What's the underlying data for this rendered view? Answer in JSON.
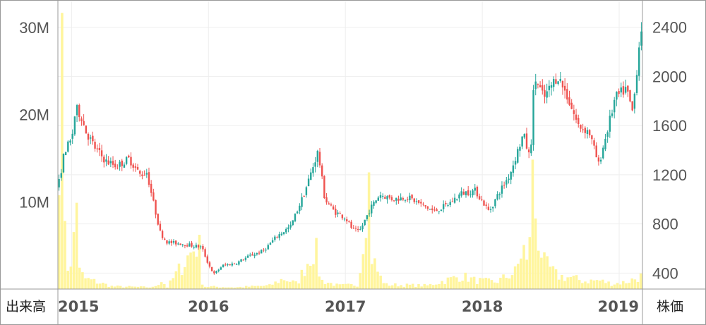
{
  "chart_data": {
    "type": "candlestick+bar",
    "left_axis": {
      "label": "出来高",
      "ticks": [
        {
          "v": 10000000,
          "t": "10M"
        },
        {
          "v": 20000000,
          "t": "20M"
        },
        {
          "v": 30000000,
          "t": "30M"
        }
      ],
      "ylim": [
        0,
        33000000
      ]
    },
    "right_axis": {
      "label": "株価",
      "ticks": [
        {
          "v": 400,
          "t": "400"
        },
        {
          "v": 800,
          "t": "800"
        },
        {
          "v": 1200,
          "t": "1200"
        },
        {
          "v": 1600,
          "t": "1600"
        },
        {
          "v": 2000,
          "t": "2000"
        },
        {
          "v": 2400,
          "t": "2400"
        }
      ],
      "ylim": [
        270,
        2610
      ]
    },
    "x_axis": {
      "ticks": [
        "2015",
        "2016",
        "2017",
        "2018",
        "2019"
      ],
      "range": [
        2014.9,
        2019.17
      ]
    },
    "colors": {
      "up": "#26a69a",
      "down": "#ef5350",
      "volume": "#fff59d",
      "grid": "#eeeeee",
      "frame": "#999999"
    },
    "price_path": [
      [
        2014.9,
        1090
      ],
      [
        2014.95,
        1400
      ],
      [
        2015.0,
        1480
      ],
      [
        2015.03,
        1740
      ],
      [
        2015.07,
        1680
      ],
      [
        2015.1,
        1560
      ],
      [
        2015.17,
        1420
      ],
      [
        2015.25,
        1310
      ],
      [
        2015.33,
        1270
      ],
      [
        2015.42,
        1330
      ],
      [
        2015.5,
        1200
      ],
      [
        2015.55,
        1220
      ],
      [
        2015.6,
        960
      ],
      [
        2015.65,
        720
      ],
      [
        2015.7,
        650
      ],
      [
        2015.8,
        640
      ],
      [
        2015.9,
        620
      ],
      [
        2015.95,
        610
      ],
      [
        2016.0,
        470
      ],
      [
        2016.04,
        390
      ],
      [
        2016.1,
        460
      ],
      [
        2016.2,
        480
      ],
      [
        2016.3,
        540
      ],
      [
        2016.4,
        580
      ],
      [
        2016.5,
        700
      ],
      [
        2016.6,
        780
      ],
      [
        2016.7,
        1050
      ],
      [
        2016.75,
        1220
      ],
      [
        2016.8,
        1390
      ],
      [
        2016.85,
        1000
      ],
      [
        2016.92,
        900
      ],
      [
        2017.0,
        850
      ],
      [
        2017.05,
        760
      ],
      [
        2017.1,
        730
      ],
      [
        2017.18,
        920
      ],
      [
        2017.25,
        1040
      ],
      [
        2017.35,
        1000
      ],
      [
        2017.45,
        1020
      ],
      [
        2017.55,
        960
      ],
      [
        2017.65,
        900
      ],
      [
        2017.75,
        960
      ],
      [
        2017.85,
        1050
      ],
      [
        2017.95,
        1070
      ],
      [
        2018.05,
        900
      ],
      [
        2018.12,
        1050
      ],
      [
        2018.2,
        1200
      ],
      [
        2018.3,
        1530
      ],
      [
        2018.35,
        1320
      ],
      [
        2018.38,
        2000
      ],
      [
        2018.45,
        1820
      ],
      [
        2018.55,
        2010
      ],
      [
        2018.62,
        1840
      ],
      [
        2018.7,
        1600
      ],
      [
        2018.78,
        1550
      ],
      [
        2018.85,
        1280
      ],
      [
        2018.92,
        1590
      ],
      [
        2018.97,
        1820
      ],
      [
        2019.05,
        1900
      ],
      [
        2019.1,
        1700
      ],
      [
        2019.14,
        2200
      ],
      [
        2019.17,
        2480
      ]
    ],
    "volume_path": [
      [
        2014.9,
        6500000
      ],
      [
        2014.92,
        31000000
      ],
      [
        2014.95,
        11000000
      ],
      [
        2014.97,
        3000000
      ],
      [
        2015.0,
        2000000
      ],
      [
        2015.04,
        12000000
      ],
      [
        2015.06,
        2000000
      ],
      [
        2015.1,
        1200000
      ],
      [
        2015.3,
        300000
      ],
      [
        2015.6,
        200000
      ],
      [
        2015.66,
        1000000
      ],
      [
        2015.7,
        200000
      ],
      [
        2015.93,
        5500000
      ],
      [
        2015.96,
        300000
      ],
      [
        2016.2,
        200000
      ],
      [
        2016.45,
        400000
      ],
      [
        2016.55,
        1200000
      ],
      [
        2016.65,
        600000
      ],
      [
        2016.78,
        5000000
      ],
      [
        2016.82,
        1000000
      ],
      [
        2016.95,
        400000
      ],
      [
        2017.1,
        500000
      ],
      [
        2017.17,
        14000000
      ],
      [
        2017.19,
        4000000
      ],
      [
        2017.25,
        1500000
      ],
      [
        2017.3,
        500000
      ],
      [
        2017.6,
        400000
      ],
      [
        2017.85,
        1500000
      ],
      [
        2017.95,
        1000000
      ],
      [
        2018.1,
        800000
      ],
      [
        2018.25,
        2000000
      ],
      [
        2018.3,
        5000000
      ],
      [
        2018.33,
        2500000
      ],
      [
        2018.37,
        12500000
      ],
      [
        2018.4,
        7000000
      ],
      [
        2018.45,
        3000000
      ],
      [
        2018.55,
        1500000
      ],
      [
        2018.65,
        1300000
      ],
      [
        2018.75,
        900000
      ],
      [
        2018.85,
        1000000
      ],
      [
        2018.95,
        600000
      ],
      [
        2019.05,
        800000
      ],
      [
        2019.12,
        1200000
      ],
      [
        2019.17,
        1500000
      ]
    ]
  }
}
